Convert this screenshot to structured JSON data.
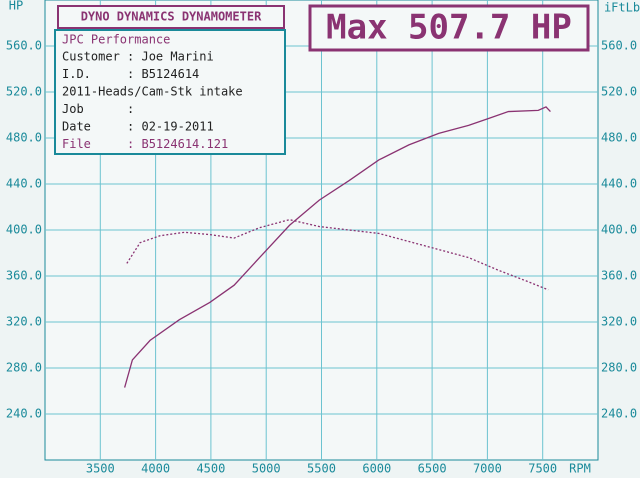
{
  "chart_data": {
    "type": "line",
    "header": "DYNO DYNAMICS DYNAMOMETER",
    "max_label": "Max 507.7 HP",
    "info": {
      "title": "JPC Performance",
      "rows": [
        "Customer : Joe Marini",
        "I.D.     : B5124614",
        "2011-Heads/Cam-Stk intake",
        "Job      :",
        "Date     : 02-19-2011",
        "File     : B5124614.121"
      ]
    },
    "y_label": "HP",
    "y2_label": "iFtLb",
    "x_label": "RPM",
    "xlim": [
      3000,
      8000
    ],
    "xticks": [
      3500,
      4000,
      4500,
      5000,
      5500,
      6000,
      6500,
      7000,
      7500
    ],
    "ylim": [
      200,
      600
    ],
    "yticks": [
      {
        "value": 240,
        "label": "240.0"
      },
      {
        "value": 280,
        "label": "280.0"
      },
      {
        "value": 320,
        "label": "320.0"
      },
      {
        "value": 360,
        "label": "360.0"
      },
      {
        "value": 400,
        "label": "400.0"
      },
      {
        "value": 440,
        "label": "440.0"
      },
      {
        "value": 480,
        "label": "480.0"
      },
      {
        "value": 520,
        "label": "520.0"
      },
      {
        "value": 560,
        "label": "560.0"
      }
    ],
    "y2lim": [
      200,
      600
    ],
    "y2ticks": [
      {
        "value": 240,
        "label": "240.0"
      },
      {
        "value": 280,
        "label": "280.0"
      },
      {
        "value": 320,
        "label": "320.0"
      },
      {
        "value": 360,
        "label": "360.0"
      },
      {
        "value": 400,
        "label": "400.0"
      },
      {
        "value": 440,
        "label": "440.0"
      },
      {
        "value": 480,
        "label": "480.0"
      },
      {
        "value": 520,
        "label": "520.0"
      },
      {
        "value": 560,
        "label": "560.0"
      }
    ],
    "grid": true,
    "series": [
      {
        "color": "#8a3372",
        "dash": false,
        "x": [
          3720,
          3790,
          3950,
          4215,
          4490,
          4710,
          4940,
          5210,
          5480,
          5750,
          6020,
          6290,
          6560,
          6830,
          7010,
          7190,
          7460,
          7530,
          7570
        ],
        "values": [
          263,
          287,
          304,
          322,
          337,
          352,
          376,
          404,
          426,
          443,
          461,
          474,
          484,
          491,
          497,
          503,
          504,
          507,
          503
        ]
      },
      {
        "color": "#8a3372",
        "dash": true,
        "axis": "y2",
        "x": [
          3740,
          3860,
          4040,
          4260,
          4490,
          4710,
          4940,
          5210,
          5480,
          5750,
          6020,
          6290,
          6560,
          6830,
          7100,
          7370,
          7550
        ],
        "values": [
          371,
          389,
          395,
          398,
          396,
          393,
          402,
          409,
          403,
          400,
          397,
          390,
          383,
          376,
          365,
          355,
          348
        ]
      }
    ]
  }
}
